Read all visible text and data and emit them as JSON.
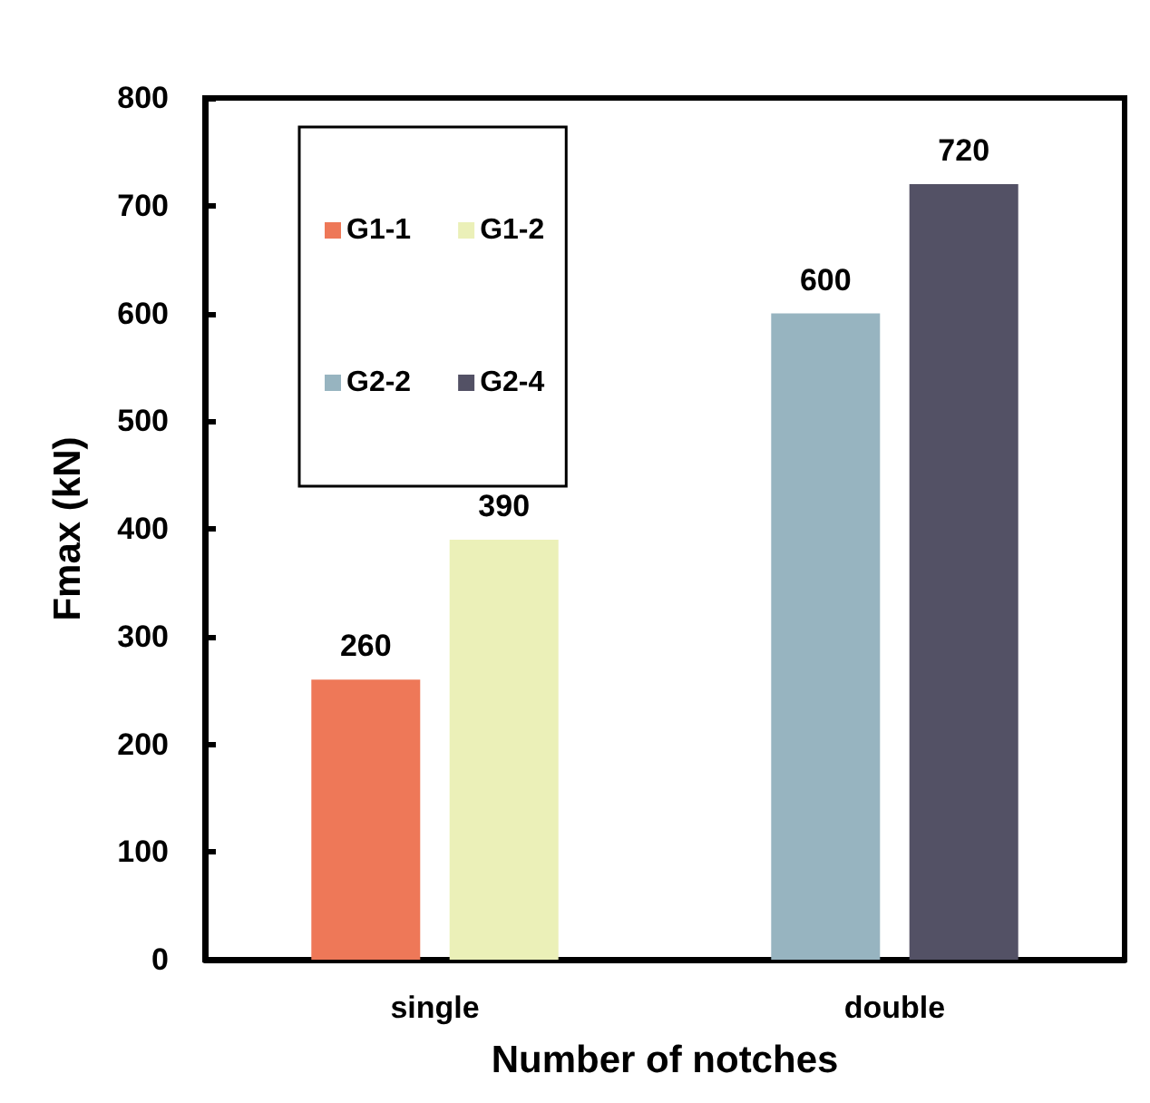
{
  "chart_data": {
    "type": "bar",
    "xlabel": "Number of notches",
    "ylabel": "Fmax (kN)",
    "categories": [
      "single",
      "double"
    ],
    "series": [
      {
        "name": "G1-1",
        "color": "#ee7858",
        "values": [
          260,
          null
        ]
      },
      {
        "name": "G1-2",
        "color": "#ebf0b8",
        "values": [
          390,
          null
        ]
      },
      {
        "name": "G2-2",
        "color": "#97b4c0",
        "values": [
          null,
          600
        ]
      },
      {
        "name": "G2-4",
        "color": "#535165",
        "values": [
          null,
          720
        ]
      }
    ],
    "ylim": [
      0,
      800
    ],
    "yticks": [
      0,
      100,
      200,
      300,
      400,
      500,
      600,
      700,
      800
    ],
    "data_labels": true,
    "legend": "top left",
    "grid": false
  }
}
